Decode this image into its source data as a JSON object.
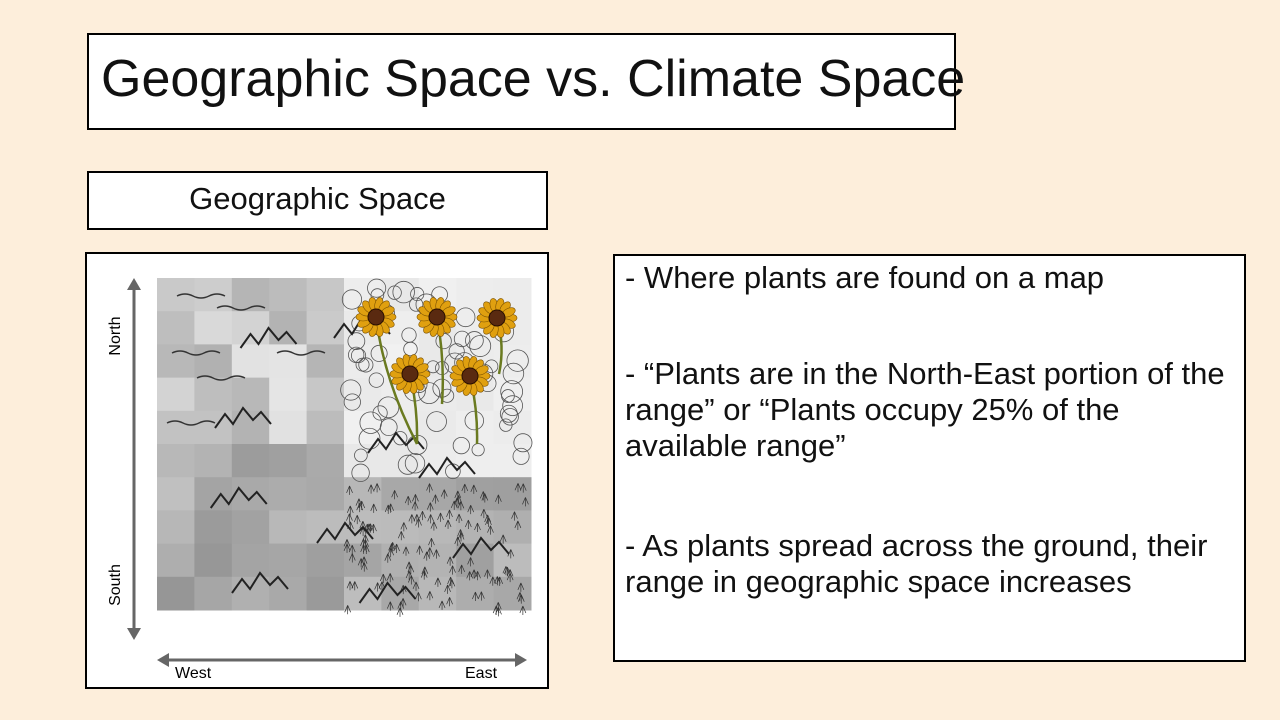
{
  "slide": {
    "title": "Geographic Space vs. Climate Space",
    "subtitle": "Geographic Space",
    "map": {
      "axis_north": "North",
      "axis_south": "South",
      "axis_west": "West",
      "axis_east": "East",
      "flower_count": 5
    },
    "bullets": [
      "- Where plants are found on a map",
      "- “Plants are in the North-East portion of the range” or  “Plants occupy 25% of the available range”",
      "- As plants spread across the ground, their range in geographic space increases"
    ]
  },
  "colors": {
    "background": "#fdeedb",
    "flower_petal": "#e0a010",
    "flower_center": "#5a2a10",
    "stem": "#6a7a20"
  }
}
